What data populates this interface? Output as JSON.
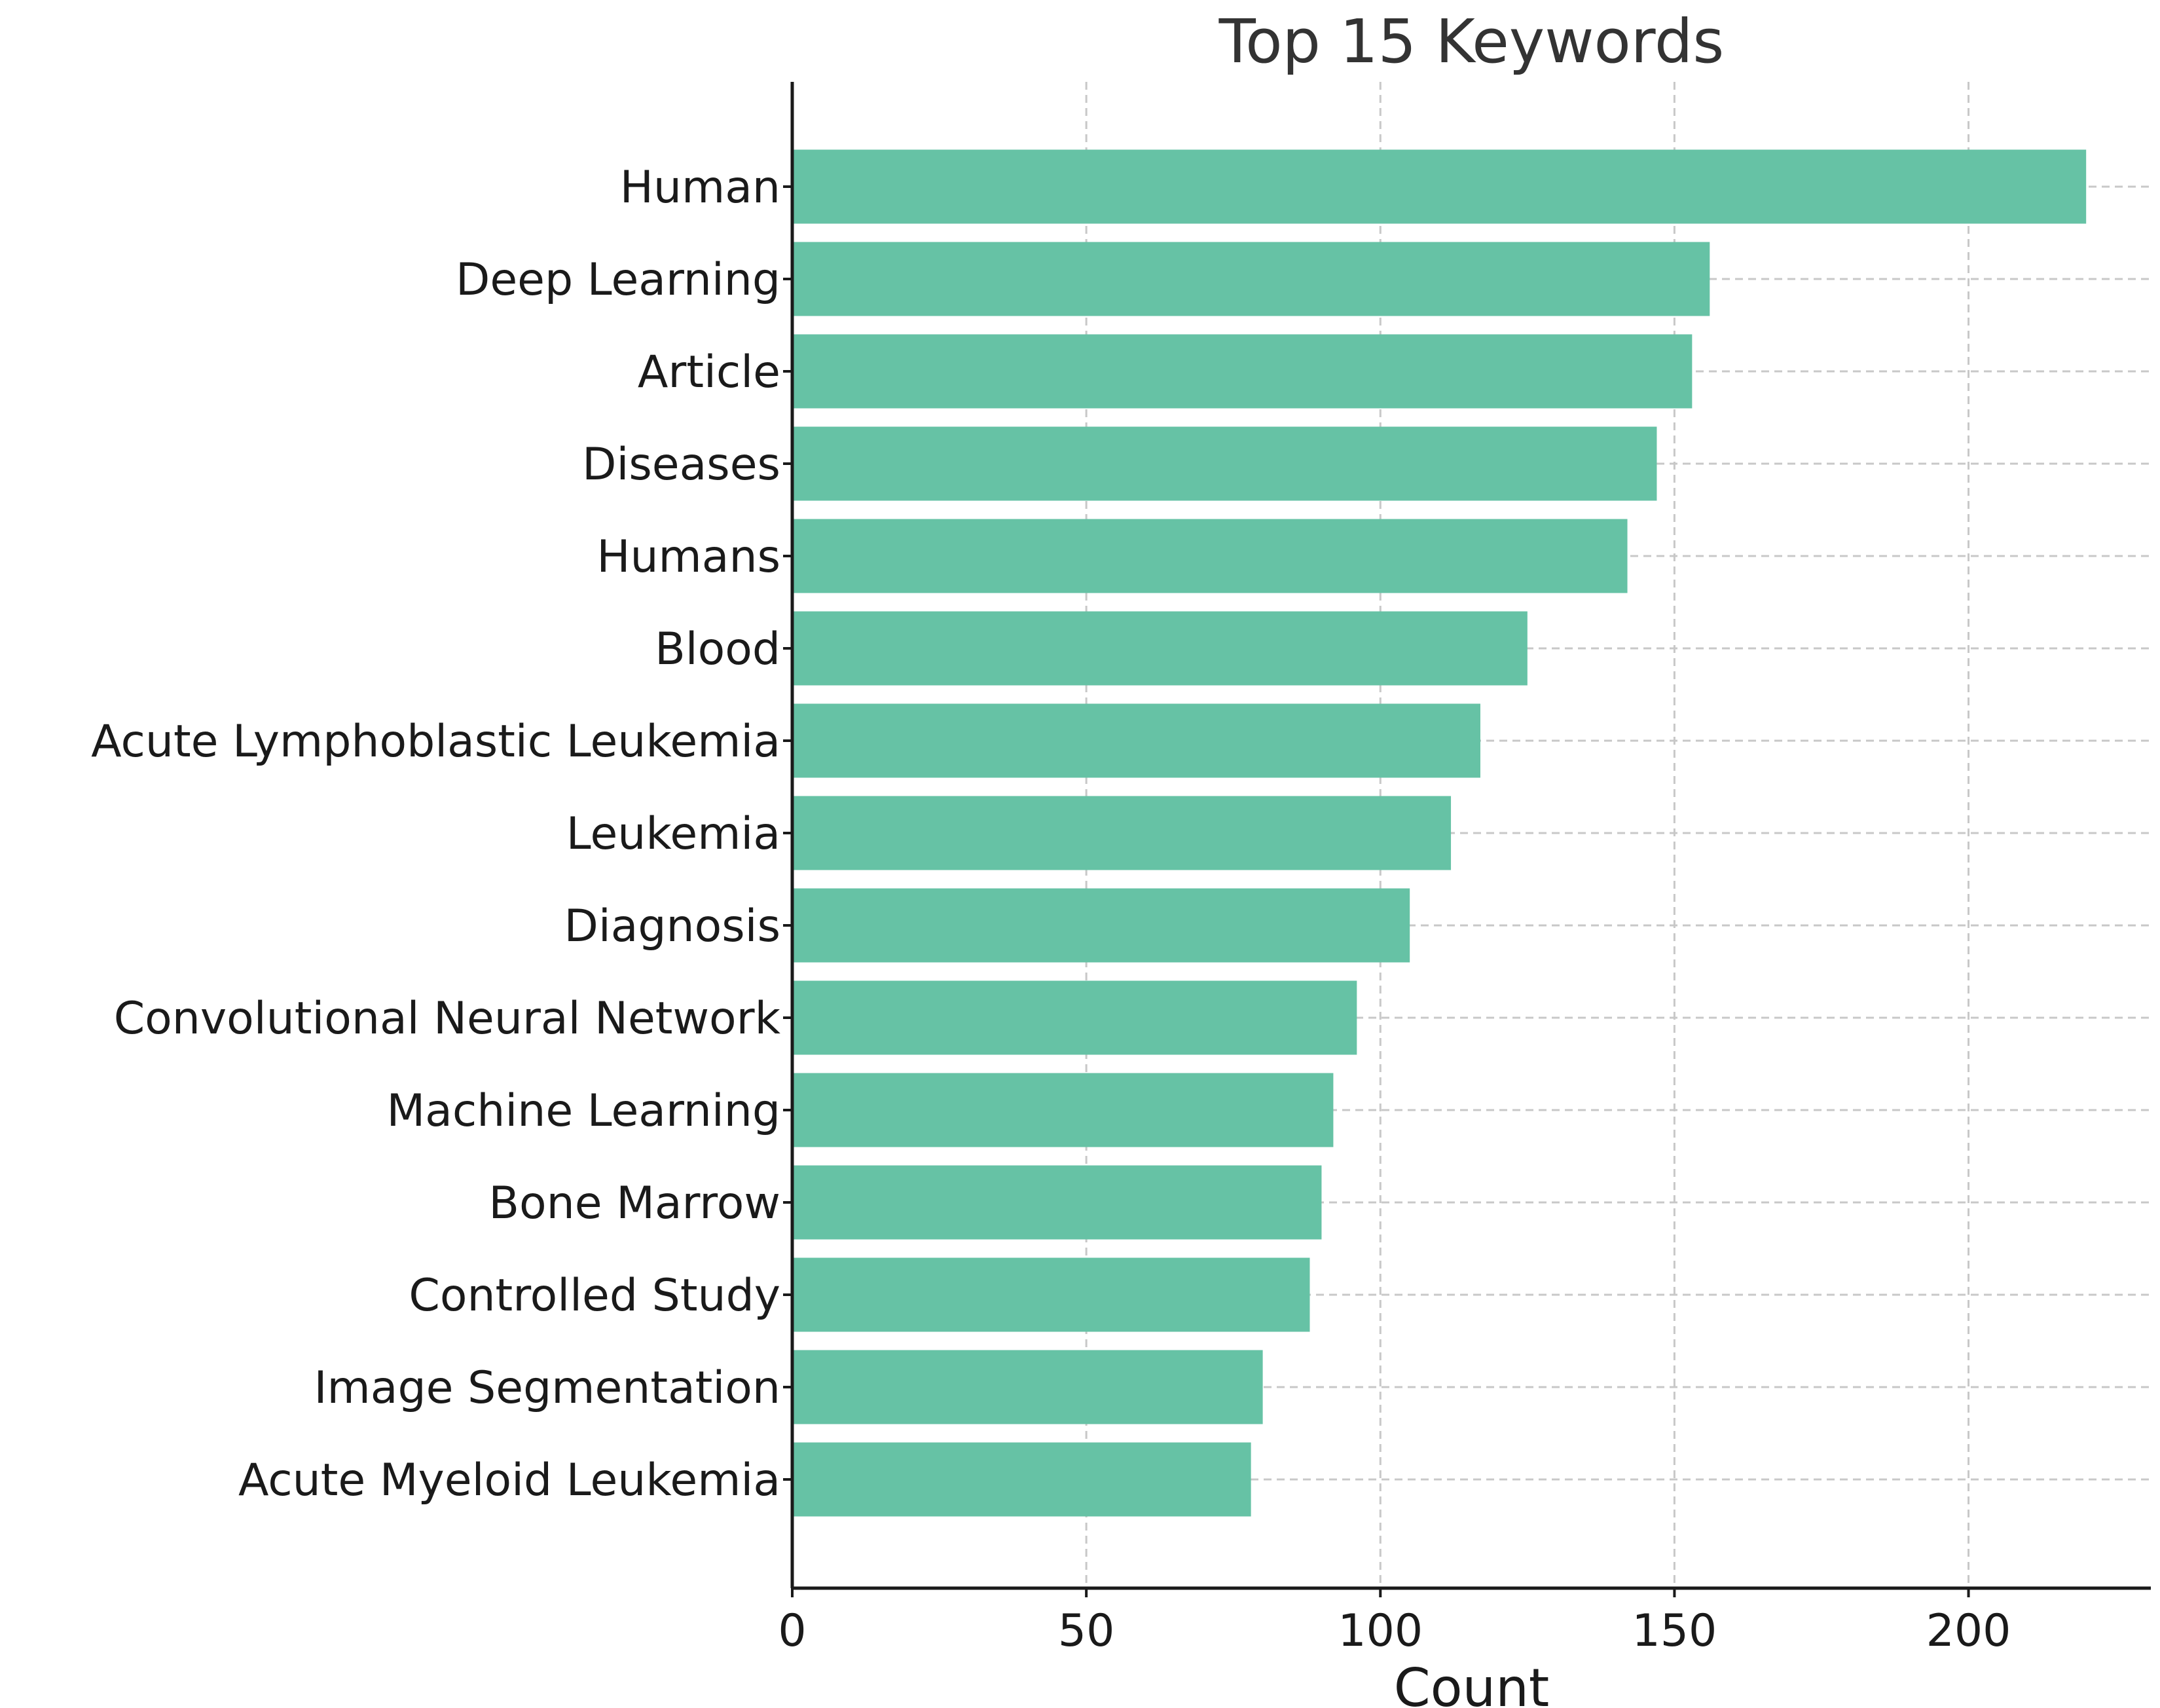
{
  "chart_data": {
    "type": "bar",
    "orientation": "horizontal",
    "title": "Top 15 Keywords",
    "xlabel": "Count",
    "ylabel": "",
    "categories": [
      "Human",
      "Deep Learning",
      "Article",
      "Diseases",
      "Humans",
      "Blood",
      "Acute Lymphoblastic Leukemia",
      "Leukemia",
      "Diagnosis",
      "Convolutional Neural Network",
      "Machine Learning",
      "Bone Marrow",
      "Controlled Study",
      "Image Segmentation",
      "Acute Myeloid Leukemia"
    ],
    "values": [
      220,
      156,
      153,
      147,
      142,
      125,
      117,
      112,
      105,
      96,
      92,
      90,
      88,
      80,
      78
    ],
    "xlim": [
      0,
      231
    ],
    "xticks": [
      0,
      50,
      100,
      150,
      200
    ],
    "grid": true,
    "bar_color": "#66c2a5"
  }
}
